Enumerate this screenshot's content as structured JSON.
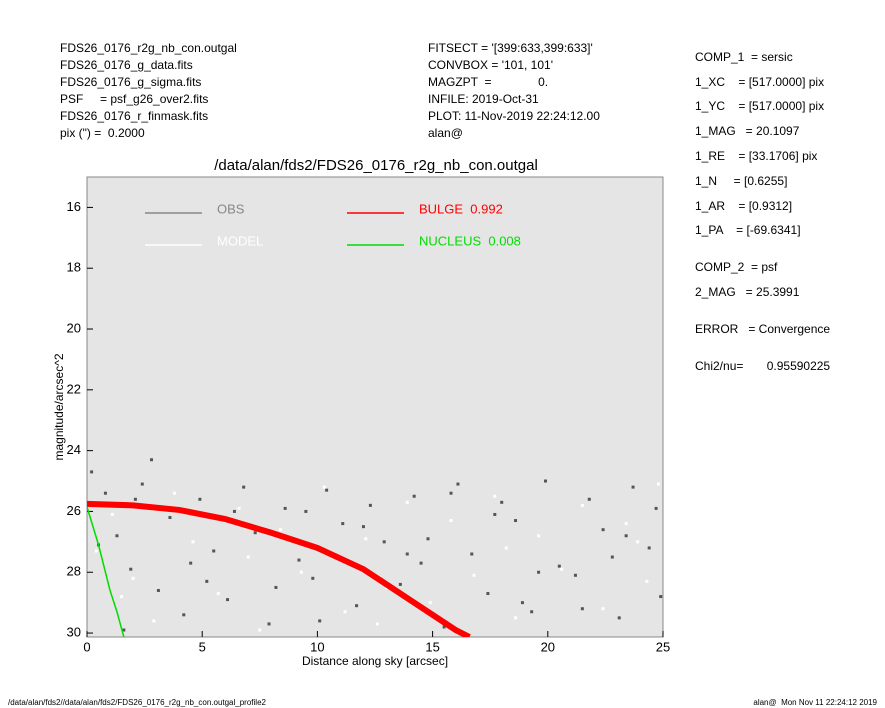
{
  "chart_data": {
    "type": "scatter",
    "title": "/data/alan/fds2/FDS26_0176_r2g_nb_con.outgal",
    "x_label": "Distance along sky [arcsec]",
    "y_label": "magnitude/arcsec^2",
    "xlim": [
      0,
      25
    ],
    "xticks": [
      0,
      5,
      10,
      15,
      20,
      25
    ],
    "ylim": [
      15,
      30.13
    ],
    "yticks": [
      16,
      18,
      20,
      22,
      24,
      26,
      28,
      30
    ],
    "y_inverted": true,
    "legend": "upper left",
    "series": [
      {
        "name": "OBS",
        "color": "#555555",
        "mode": "markers",
        "x": [
          0.2,
          0.8,
          1.3,
          1.9,
          2.4,
          3.1,
          3.6,
          4.2,
          4.9,
          5.5,
          6.1,
          6.8,
          7.3,
          7.9,
          8.6,
          9.2,
          9.8,
          10.4,
          11.1,
          11.7,
          12.3,
          12.9,
          13.6,
          14.2,
          14.8,
          15.5,
          16.1,
          16.7,
          17.4,
          18.0,
          18.6,
          19.3,
          19.9,
          20.5,
          21.2,
          21.8,
          22.4,
          23.1,
          23.7,
          24.4,
          24.9,
          0.5,
          1.6,
          2.8,
          4.5,
          6.4,
          8.2,
          10.1,
          12.0,
          13.9,
          15.8,
          17.7,
          19.6,
          21.5,
          23.4,
          24.7,
          2.1,
          5.2,
          9.5,
          14.5,
          18.9,
          22.8
        ],
        "values": [
          24.7,
          25.4,
          26.8,
          27.9,
          25.1,
          28.6,
          26.2,
          29.4,
          25.6,
          27.3,
          28.9,
          25.2,
          26.7,
          29.7,
          25.9,
          27.6,
          28.2,
          25.3,
          26.4,
          29.1,
          25.8,
          27.0,
          28.4,
          25.5,
          26.9,
          29.8,
          25.1,
          27.4,
          28.7,
          25.7,
          26.3,
          29.3,
          25.0,
          27.8,
          28.1,
          25.6,
          26.6,
          29.5,
          25.2,
          27.2,
          28.8,
          27.1,
          29.9,
          24.3,
          27.7,
          26.0,
          28.5,
          29.6,
          26.5,
          27.4,
          25.4,
          26.1,
          28.0,
          29.2,
          26.8,
          25.9,
          25.6,
          28.3,
          26.0,
          27.7,
          29.0,
          27.5
        ]
      },
      {
        "name": "MODEL",
        "color": "#ffffff",
        "mode": "markers",
        "x": [
          0.4,
          1.1,
          2.0,
          2.9,
          3.8,
          4.6,
          5.7,
          6.6,
          7.5,
          8.4,
          9.3,
          10.3,
          11.2,
          12.1,
          13.0,
          13.9,
          14.9,
          15.8,
          16.8,
          17.7,
          18.6,
          19.6,
          20.6,
          21.5,
          22.4,
          23.4,
          24.3,
          24.8,
          1.5,
          7.0,
          12.6,
          18.2,
          23.9
        ],
        "values": [
          27.3,
          26.1,
          28.2,
          29.6,
          25.4,
          27.0,
          28.7,
          25.9,
          29.9,
          26.6,
          28.0,
          25.2,
          29.3,
          26.9,
          28.5,
          25.7,
          29.0,
          26.3,
          28.1,
          25.5,
          29.5,
          26.8,
          27.9,
          25.8,
          29.2,
          26.4,
          28.3,
          25.1,
          28.8,
          27.5,
          29.7,
          27.2,
          27.0
        ]
      },
      {
        "name": "BULGE  0.992",
        "color": "#ff0000",
        "mode": "line",
        "x": [
          0,
          2,
          4,
          6,
          8,
          10,
          12,
          14,
          16,
          16.6
        ],
        "values": [
          25.75,
          25.8,
          25.95,
          26.25,
          26.7,
          27.2,
          27.9,
          28.9,
          29.9,
          30.13
        ]
      },
      {
        "name": "NUCLEUS  0.008",
        "color": "#00dd00",
        "mode": "line",
        "x": [
          0,
          0.5,
          1.0,
          1.3,
          1.6
        ],
        "values": [
          25.85,
          27.1,
          28.6,
          29.3,
          30.13
        ]
      }
    ]
  },
  "header": {
    "left": [
      "FDS26_0176_r2g_nb_con.outgal",
      "FDS26_0176_g_data.fits",
      "FDS26_0176_g_sigma.fits",
      "PSF     = psf_g26_over2.fits",
      "FDS26_0176_r_finmask.fits",
      "pix (\") =  0.2000"
    ],
    "middle": [
      "FITSECT = '[399:633,399:633]'",
      "CONVBOX = '101, 101'",
      "MAGZPT  =              0.",
      "INFILE: 2019-Oct-31",
      "PLOT: 11-Nov-2019 22:24:12.00",
      "alan@"
    ],
    "right": [
      "COMP_1  = sersic",
      "1_XC    = [517.0000] pix",
      "1_YC    = [517.0000] pix",
      "1_MAG   = 20.1097",
      "1_RE    = [33.1706] pix",
      "1_N     = [0.6255]",
      "1_AR    = [0.9312]",
      "1_PA    = [-69.6341]",
      "COMP_2  = psf",
      "2_MAG   = 25.3991",
      "ERROR   = Convergence",
      "Chi2/nu=       0.95590225"
    ]
  },
  "footer": {
    "left": "/data/alan/fds2//data/alan/fds2/FDS26_0176_r2g_nb_con.outgal_profile2",
    "right": "alan@  Mon Nov 11 22:24:12 2019"
  }
}
